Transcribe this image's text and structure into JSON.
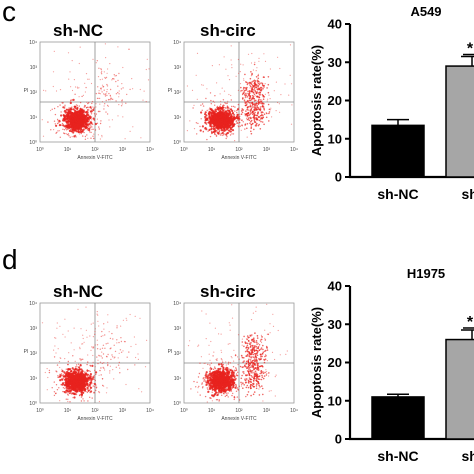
{
  "panels": [
    {
      "letter": "c",
      "flow_titles": [
        "sh-NC",
        "sh-circ"
      ],
      "flow_axis": {
        "x_label": "Annexin V-FITC",
        "y_label": "PI",
        "ticks": [
          "10⁰",
          "10¹",
          "10²",
          "10³",
          "10⁴"
        ]
      },
      "chart_data": {
        "type": "bar",
        "title": "A549",
        "ylabel": "Apoptosis rate(%)",
        "categories": [
          "sh-NC",
          "sh-"
        ],
        "values": [
          13.5,
          29
        ],
        "errors": [
          1.5,
          2.5
        ],
        "colors": [
          "#000000",
          "#a6a6a6"
        ],
        "significance": "*",
        "ylim": [
          0,
          40
        ],
        "yticks": [
          "0",
          "10",
          "20",
          "30",
          "40"
        ]
      }
    },
    {
      "letter": "d",
      "flow_titles": [
        "sh-NC",
        "sh-circ"
      ],
      "flow_axis": {
        "x_label": "Annexin V-FITC",
        "y_label": "PI",
        "ticks": [
          "10⁰",
          "10¹",
          "10²",
          "10³",
          "10⁴"
        ]
      },
      "chart_data": {
        "type": "bar",
        "title": "H1975",
        "ylabel": "Apoptosis rate(%)",
        "categories": [
          "sh-NC",
          "sh-"
        ],
        "values": [
          11,
          26
        ],
        "errors": [
          0.7,
          2.5
        ],
        "colors": [
          "#000000",
          "#a6a6a6"
        ],
        "significance": "*",
        "ylim": [
          0,
          40
        ],
        "yticks": [
          "0",
          "10",
          "20",
          "30",
          "40"
        ]
      }
    }
  ]
}
